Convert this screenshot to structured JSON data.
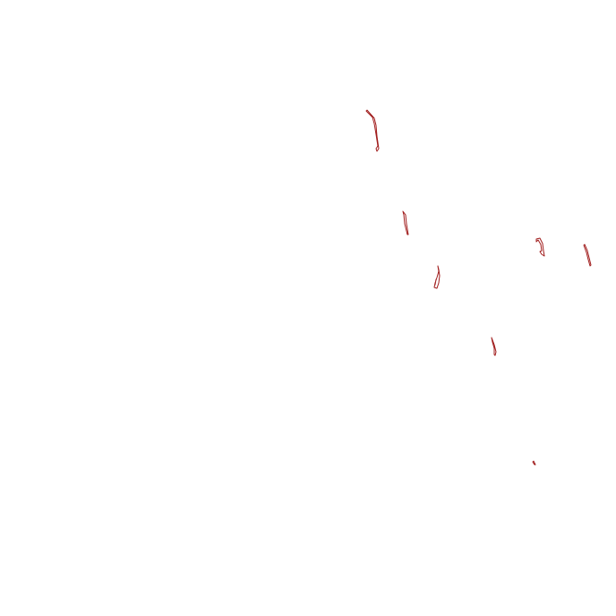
{
  "canvas": {
    "background_color": "#ffffff",
    "stroke_color": "#a01c1c"
  }
}
